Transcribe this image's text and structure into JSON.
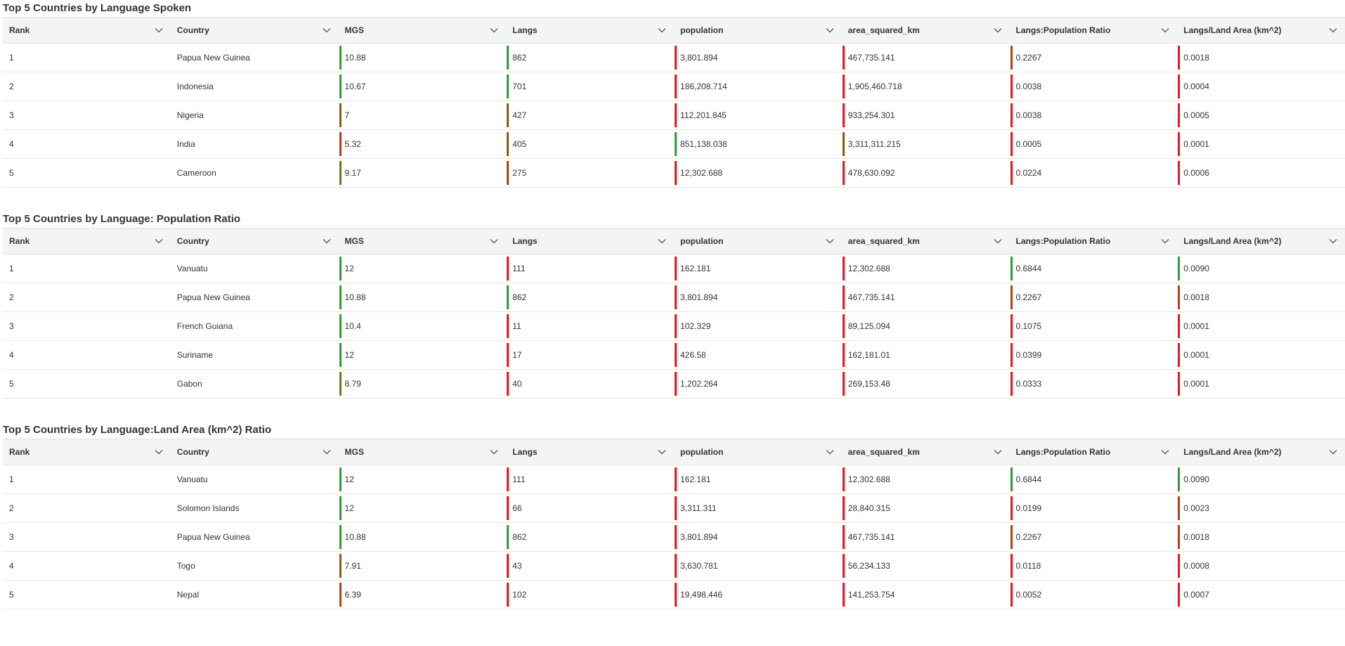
{
  "colors": {
    "high": "#2e9e2e",
    "mid_high": "#6b7a1e",
    "mid": "#8c5a14",
    "mid_low": "#b0400e",
    "low": "#e8141a"
  },
  "columns": [
    "Rank",
    "Country",
    "MGS",
    "Langs",
    "population",
    "area_squared_km",
    "Langs:Population Ratio",
    "Langs/Land Area (km^2)"
  ],
  "tables": [
    {
      "title": "Top 5 Countries by Language Spoken",
      "rows": [
        {
          "cells": [
            "1",
            "Papua New Guinea",
            "10.88",
            "862",
            "3,801.894",
            "467,735.141",
            "0.2267",
            "0.0018"
          ],
          "levels": [
            null,
            null,
            "high",
            "high",
            "low",
            "low",
            "mid_low",
            "low"
          ]
        },
        {
          "cells": [
            "2",
            "Indonesia",
            "10.67",
            "701",
            "186,208.714",
            "1,905,460.718",
            "0.0038",
            "0.0004"
          ],
          "levels": [
            null,
            null,
            "high",
            "high",
            "low",
            "low",
            "low",
            "low"
          ]
        },
        {
          "cells": [
            "3",
            "Nigeria",
            "7",
            "427",
            "112,201.845",
            "933,254.301",
            "0.0038",
            "0.0005"
          ],
          "levels": [
            null,
            null,
            "mid",
            "mid",
            "low",
            "low",
            "low",
            "low"
          ]
        },
        {
          "cells": [
            "4",
            "India",
            "5.32",
            "405",
            "851,138.038",
            "3,311,311.215",
            "0.0005",
            "0.0001"
          ],
          "levels": [
            null,
            null,
            "mid_low",
            "mid",
            "high",
            "mid",
            "low",
            "low"
          ]
        },
        {
          "cells": [
            "5",
            "Cameroon",
            "9.17",
            "275",
            "12,302.688",
            "478,630.092",
            "0.0224",
            "0.0006"
          ],
          "levels": [
            null,
            null,
            "mid_high",
            "mid_low",
            "low",
            "low",
            "low",
            "low"
          ]
        }
      ]
    },
    {
      "title": "Top 5 Countries by Language: Population Ratio",
      "rows": [
        {
          "cells": [
            "1",
            "Vanuatu",
            "12",
            "111",
            "162.181",
            "12,302.688",
            "0.6844",
            "0.0090"
          ],
          "levels": [
            null,
            null,
            "high",
            "low",
            "low",
            "low",
            "high",
            "high"
          ]
        },
        {
          "cells": [
            "2",
            "Papua New Guinea",
            "10.88",
            "862",
            "3,801.894",
            "467,735.141",
            "0.2267",
            "0.0018"
          ],
          "levels": [
            null,
            null,
            "high",
            "high",
            "low",
            "low",
            "mid_low",
            "mid_low"
          ]
        },
        {
          "cells": [
            "3",
            "French Guiana",
            "10.4",
            "11",
            "102.329",
            "89,125.094",
            "0.1075",
            "0.0001"
          ],
          "levels": [
            null,
            null,
            "high",
            "low",
            "low",
            "low",
            "low",
            "low"
          ]
        },
        {
          "cells": [
            "4",
            "Suriname",
            "12",
            "17",
            "426.58",
            "162,181.01",
            "0.0399",
            "0.0001"
          ],
          "levels": [
            null,
            null,
            "high",
            "low",
            "low",
            "low",
            "low",
            "low"
          ]
        },
        {
          "cells": [
            "5",
            "Gabon",
            "8.79",
            "40",
            "1,202.264",
            "269,153.48",
            "0.0333",
            "0.0001"
          ],
          "levels": [
            null,
            null,
            "mid_high",
            "low",
            "low",
            "low",
            "low",
            "low"
          ]
        }
      ]
    },
    {
      "title": "Top 5 Countries by Language:Land Area (km^2) Ratio",
      "rows": [
        {
          "cells": [
            "1",
            "Vanuatu",
            "12",
            "111",
            "162.181",
            "12,302.688",
            "0.6844",
            "0.0090"
          ],
          "levels": [
            null,
            null,
            "high",
            "low",
            "low",
            "low",
            "high",
            "high"
          ]
        },
        {
          "cells": [
            "2",
            "Solomon Islands",
            "12",
            "66",
            "3,311.311",
            "28,840.315",
            "0.0199",
            "0.0023"
          ],
          "levels": [
            null,
            null,
            "high",
            "low",
            "low",
            "low",
            "low",
            "mid_low"
          ]
        },
        {
          "cells": [
            "3",
            "Papua New Guinea",
            "10.88",
            "862",
            "3,801.894",
            "467,735.141",
            "0.2267",
            "0.0018"
          ],
          "levels": [
            null,
            null,
            "high",
            "high",
            "low",
            "low",
            "mid_low",
            "mid_low"
          ]
        },
        {
          "cells": [
            "4",
            "Togo",
            "7.91",
            "43",
            "3,630.781",
            "56,234.133",
            "0.0118",
            "0.0008"
          ],
          "levels": [
            null,
            null,
            "mid",
            "low",
            "low",
            "low",
            "low",
            "low"
          ]
        },
        {
          "cells": [
            "5",
            "Nepal",
            "6.39",
            "102",
            "19,498.446",
            "141,253.754",
            "0.0052",
            "0.0007"
          ],
          "levels": [
            null,
            null,
            "mid_low",
            "low",
            "low",
            "low",
            "low",
            "low"
          ]
        }
      ]
    }
  ]
}
